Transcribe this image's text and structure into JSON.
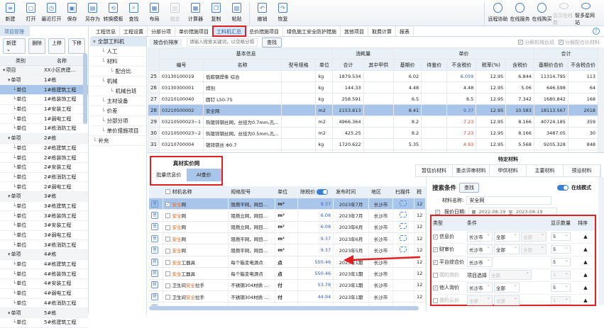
{
  "toolbar": {
    "left": [
      {
        "label": "新建",
        "icon": "new-file-icon"
      },
      {
        "label": "打开",
        "icon": "folder-icon"
      },
      {
        "label": "最近打开",
        "icon": "recent-icon"
      },
      {
        "label": "保存",
        "icon": "save-icon"
      },
      {
        "label": "另存为",
        "icon": "save-as-icon"
      },
      {
        "label": "转换模板",
        "icon": "convert-icon"
      },
      {
        "label": "查找",
        "icon": "search-icon"
      },
      {
        "label": "布局",
        "icon": "layout-icon"
      },
      {
        "label": "锁定",
        "icon": "lock-icon",
        "disabled": true
      },
      {
        "label": "计算器",
        "icon": "calculator-icon"
      },
      {
        "label": "复制",
        "icon": "copy-icon"
      },
      {
        "label": "粘贴",
        "icon": "paste-icon"
      },
      {
        "label": "撤销",
        "icon": "undo-icon"
      },
      {
        "label": "恢复",
        "icon": "redo-icon"
      }
    ],
    "right": [
      {
        "label": "远程协助",
        "icon": "remote-icon"
      },
      {
        "label": "在线服务",
        "icon": "headset-icon"
      },
      {
        "label": "在线购买",
        "icon": "buy-icon"
      },
      {
        "label": "显示在线数",
        "icon": "online-icon",
        "disabled": true
      },
      {
        "label": "智多星网站",
        "icon": "website-icon"
      }
    ]
  },
  "left_panel": {
    "title": "项目管理",
    "buttons": [
      "新建 ⌄",
      "删除",
      "上移",
      "下移"
    ],
    "headers": [
      "类别",
      "名称"
    ],
    "rows": [
      {
        "type": "项目",
        "name": "XX小区房建...",
        "level": 0
      },
      {
        "type": "单项",
        "name": "1#栋",
        "level": 1
      },
      {
        "type": "单位",
        "name": "1#栋建筑工程",
        "level": 2,
        "selected": true
      },
      {
        "type": "单位",
        "name": "1#栋装饰工程",
        "level": 2
      },
      {
        "type": "单位",
        "name": "1#安装工程",
        "level": 2
      },
      {
        "type": "单位",
        "name": "1#弱电工程",
        "level": 2
      },
      {
        "type": "单位",
        "name": "1#栋消防工程",
        "level": 2
      },
      {
        "type": "单项",
        "name": "2#栋",
        "level": 1
      },
      {
        "type": "单位",
        "name": "2#栋建筑工程",
        "level": 2
      },
      {
        "type": "单位",
        "name": "2#栋装饰工程",
        "level": 2
      },
      {
        "type": "单位",
        "name": "2#安装工程",
        "level": 2
      },
      {
        "type": "单位",
        "name": "2#栋消防工程",
        "level": 2
      },
      {
        "type": "单位",
        "name": "2#弱电工程",
        "level": 2
      },
      {
        "type": "单项",
        "name": "3#栋",
        "level": 1
      },
      {
        "type": "单位",
        "name": "3#栋建筑工程",
        "level": 2
      },
      {
        "type": "单位",
        "name": "3#栋装饰工程",
        "level": 2
      },
      {
        "type": "单位",
        "name": "3#安装工程",
        "level": 2
      },
      {
        "type": "单位",
        "name": "3#弱电工程",
        "level": 2
      },
      {
        "type": "单位",
        "name": "3#栋消防工程",
        "level": 2
      },
      {
        "type": "单项",
        "name": "4#栋",
        "level": 1
      },
      {
        "type": "单位",
        "name": "4#栋建筑工程",
        "level": 2
      },
      {
        "type": "单位",
        "name": "4#栋装饰工程",
        "level": 2
      },
      {
        "type": "单位",
        "name": "4#安装工程",
        "level": 2
      },
      {
        "type": "单位",
        "name": "4#弱电工程",
        "level": 2
      },
      {
        "type": "单位",
        "name": "4#栋消防工程",
        "level": 2
      },
      {
        "type": "单项",
        "name": "5#栋",
        "level": 1
      },
      {
        "type": "单位",
        "name": "5#栋建筑工程",
        "level": 2
      }
    ]
  },
  "tree": [
    {
      "label": "全部工料机",
      "level": 0,
      "selected": true
    },
    {
      "label": "人工",
      "level": 1
    },
    {
      "label": "材料",
      "level": 1
    },
    {
      "label": "配合比",
      "level": 2
    },
    {
      "label": "机械",
      "level": 1
    },
    {
      "label": "机械台班",
      "level": 2
    },
    {
      "label": "主材设备",
      "level": 1
    },
    {
      "label": "价差",
      "level": 1
    },
    {
      "label": "分部分项",
      "level": 1
    },
    {
      "label": "单价措施项目",
      "level": 1
    },
    {
      "label": "补充",
      "level": 0
    }
  ],
  "tabs": [
    {
      "label": "工程信息"
    },
    {
      "label": "工程设置"
    },
    {
      "label": "分部分项"
    },
    {
      "label": "单价措施项目"
    },
    {
      "label": "工料机汇总",
      "active": true
    },
    {
      "label": "总价措施项目"
    },
    {
      "label": "绿色施工安全防护措施"
    },
    {
      "label": "其他项目"
    },
    {
      "label": "取费计算"
    },
    {
      "label": "报表"
    }
  ],
  "search": {
    "sort_label": "按合价排序",
    "placeholder": "请输入搜索关键词，以空格分隔",
    "find_button": "查找",
    "check_machine": "分解机械台班",
    "check_mix": "分解配合比材料"
  },
  "main_table": {
    "group_headers": [
      "基本信息",
      "消耗量",
      "单价",
      "合计"
    ],
    "headers": [
      "编号",
      "名称",
      "型号规格",
      "单位",
      "合计",
      "其中甲供",
      "基期价",
      "待鉴价",
      "不含税价",
      "税率(%)",
      "含税价",
      "基期价合价",
      "不含税合价"
    ],
    "rows": [
      {
        "no": "25",
        "code": "03130100019",
        "name": "低碳钢焊条 综合",
        "spec": "",
        "unit": "kg",
        "qty": "1879.534",
        "jia": "",
        "base": "6.02",
        "pend": "",
        "notax": "6.059",
        "notax_color": "blue",
        "rate": "12.95",
        "tax": "6.844",
        "base_total": "11314.795",
        "notax_total": "113"
      },
      {
        "no": "26",
        "code": "03130300001",
        "name": "焊剂",
        "spec": "",
        "unit": "kg",
        "qty": "144.33",
        "jia": "",
        "base": "4.48",
        "pend": "",
        "notax": "4.48",
        "notax_color": "",
        "rate": "12.95",
        "tax": "5.06",
        "base_total": "646.598",
        "notax_total": "64"
      },
      {
        "no": "27",
        "code": "03210100040",
        "name": "圆钉 L50-75",
        "spec": "",
        "unit": "kg",
        "qty": "258.591",
        "jia": "",
        "base": "6.5",
        "pend": "",
        "notax": "6.5",
        "notax_color": "",
        "rate": "12.95",
        "tax": "7.342",
        "base_total": "1680.842",
        "notax_total": "168"
      },
      {
        "no": "28",
        "code": "03210500002",
        "name": "安全网",
        "spec": "",
        "unit": "m2",
        "qty": "2153.813",
        "jia": "",
        "base": "8.41",
        "pend": "",
        "notax": "9.37",
        "notax_color": "blue",
        "rate": "12.95",
        "tax": "10.583",
        "base_total": "18113.567",
        "notax_total": "2018",
        "selected": true
      },
      {
        "no": "29",
        "code": "03210500023~1",
        "name": "热镀锌钢丝网，丝径为0.7mm,孔...",
        "spec": "",
        "unit": "m2",
        "qty": "4966.364",
        "jia": "",
        "base": "8.2",
        "pend": "",
        "notax": "7.23",
        "notax_color": "red",
        "rate": "12.95",
        "tax": "8.166",
        "base_total": "40724.185",
        "notax_total": "359"
      },
      {
        "no": "30",
        "code": "03210500023~2",
        "name": "热镀锌钢丝网，丝径为0.5mm,孔...",
        "spec": "",
        "unit": "m2",
        "qty": "425.25",
        "jia": "",
        "base": "8.2",
        "pend": "",
        "notax": "7.23",
        "notax_color": "red",
        "rate": "12.95",
        "tax": "8.166",
        "base_total": "3487.05",
        "notax_total": "30"
      },
      {
        "no": "31",
        "code": "03210700004",
        "name": "镀锌铁丝 Φ0.7",
        "spec": "",
        "unit": "kg",
        "qty": "1720.622",
        "jia": "",
        "base": "5.35",
        "pend": "",
        "notax": "4.93",
        "notax_color": "red",
        "rate": "12.95",
        "tax": "5.568",
        "base_total": "9205.328",
        "notax_total": "848"
      },
      {
        "no": "32",
        "code": "03210700013",
        "name": "镀锌铁丝 Φ4.0",
        "spec": "",
        "unit": "kg",
        "qty": "20.366",
        "jia": "",
        "base": "5.35",
        "pend": "",
        "notax": "4.93",
        "notax_color": "red",
        "rate": "12.95",
        "tax": "5.568",
        "base_total": "108.958",
        "notax_total": "10"
      },
      {
        "no": "33",
        "code": "03210900014",
        "name": "某镀铁丝 综合",
        "spec": "",
        "unit": "kg",
        "qty": "191.54",
        "jia": "",
        "base": "5.75",
        "pend": "",
        "notax": "6.95",
        "notax_color": "blue",
        "rate": "12.95",
        "tax": "7.85",
        "base_total": "1101.355",
        "notax_total": "133"
      }
    ]
  },
  "zhencai": {
    "title": "真材实价网",
    "tabs": [
      {
        "label": "批量信息价"
      },
      {
        "label": "AI查价",
        "active": true
      }
    ]
  },
  "bottom_table": {
    "headers": [
      "材机名称",
      "规格型号",
      "单位",
      "除税价",
      "发布时间",
      "地区",
      "扫描件",
      "税"
    ],
    "rows": [
      {
        "tag": "信",
        "pre": "",
        "hl": "安全",
        "post": "网",
        "spec": "阻燃平网，网目…",
        "unit": "m²",
        "price": "9.37",
        "date": "2023年7月",
        "area": "长沙市",
        "scan": true,
        "tax": "12",
        "checked": true,
        "selected": true
      },
      {
        "tag": "信",
        "pre": "",
        "hl": "安全",
        "post": "网",
        "spec": "阻燃立网，网目…",
        "unit": "m²",
        "price": "6.08",
        "date": "2023年7月",
        "area": "长沙市",
        "scan": true,
        "tax": "12"
      },
      {
        "tag": "信",
        "pre": "",
        "hl": "安全",
        "post": "网",
        "spec": "阻燃立网，网目…",
        "unit": "m²",
        "price": "6.08",
        "date": "2023年6月",
        "area": "长沙市",
        "scan": true,
        "tax": "12"
      },
      {
        "tag": "信",
        "pre": "",
        "hl": "安全",
        "post": "网",
        "spec": "阻燃平网，网目…",
        "unit": "m²",
        "price": "9.37",
        "date": "2023年6月",
        "area": "长沙市",
        "scan": true,
        "tax": "12"
      },
      {
        "tag": "信",
        "pre": "",
        "hl": "安全",
        "post": "网",
        "spec": "阻燃平网，网目…",
        "unit": "m²",
        "price": "9.37",
        "date": "2023年5月",
        "area": "长沙市",
        "scan": true,
        "tax": "12"
      },
      {
        "tag": "财",
        "pre": "",
        "hl": "安全",
        "post": "工器具",
        "spec": "每个箱变电源点",
        "unit": "点",
        "price": "550.46",
        "date": "2023年1期",
        "area": "长沙市",
        "scan": false,
        "tax": "12"
      },
      {
        "tag": "财",
        "pre": "",
        "hl": "安全",
        "post": "工器具",
        "spec": "每个箱变电源点",
        "unit": "点",
        "price": "550.46",
        "date": "2023年1期",
        "area": "长沙市",
        "scan": false,
        "tax": "12"
      },
      {
        "tag": "财",
        "pre": "卫生间",
        "hl": "安全",
        "post": "拉手",
        "spec": "不锈钢304材质 …",
        "unit": "付",
        "price": "53.78",
        "date": "2023年1期",
        "area": "长沙市",
        "scan": false,
        "tax": "12"
      },
      {
        "tag": "财",
        "pre": "卫生间",
        "hl": "安全",
        "post": "拉手",
        "spec": "不锈钢304材质 …",
        "unit": "付",
        "price": "44.94",
        "date": "2023年1期",
        "area": "长沙市",
        "scan": false,
        "tax": "12"
      },
      {
        "tag": "财",
        "pre": "卫生间",
        "hl": "安全",
        "post": "拉手",
        "spec": "不锈钢304材质 …",
        "unit": "付",
        "price": "34.08",
        "date": "2023年1期",
        "area": "长沙市",
        "scan": false,
        "tax": "12"
      }
    ]
  },
  "special": {
    "title": "特定材料",
    "tabs": [
      "暂估价材料",
      "重点评审材料",
      "甲供材料",
      "主要材料",
      "预设材料"
    ]
  },
  "search_panel": {
    "title": "搜索条件",
    "find_button": "查找",
    "online_mode": "在线模式",
    "online_on": true,
    "name_label": "材料名称:",
    "name_value": "安全网",
    "date_label": "报价日期:",
    "date_checked": true,
    "date_from": "2022-08-19",
    "date_to_sep": "至",
    "date_to": "2023-08-19",
    "headers": [
      "类型",
      "条件",
      "显示数量",
      "排序"
    ],
    "rows": [
      {
        "type": "信息价",
        "checked": true,
        "conds": [
          "长沙市",
          "全部",
          "全部"
        ],
        "count": "5"
      },
      {
        "type": "财审价",
        "checked": true,
        "conds": [
          "长沙市",
          "全部",
          "全部"
        ],
        "count": "5"
      },
      {
        "type": "平台综合价",
        "checked": true,
        "conds": [
          "长沙市"
        ],
        "count": "5"
      },
      {
        "type": "我的询价",
        "checked": false,
        "disabled": true,
        "label": "项目选择",
        "conds": [
          "全部"
        ],
        "count": "1"
      },
      {
        "type": "他人询价",
        "checked": true,
        "conds": [
          "长沙市",
          "全部"
        ],
        "count": "5"
      },
      {
        "type": "我的云价",
        "checked": false,
        "disabled": true,
        "conds": [
          "全部",
          "全部"
        ],
        "count": "1"
      }
    ]
  },
  "colors": {
    "accent": "#3a7fd5",
    "selection": "#a9c6ea",
    "highlight_box": "#e02020",
    "keyword": "#e8641e"
  }
}
